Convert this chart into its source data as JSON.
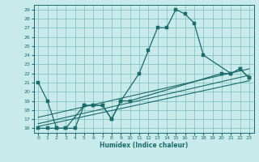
{
  "title": "",
  "xlabel": "Humidex (Indice chaleur)",
  "bg_color": "#c8eaea",
  "grid_color": "#7bbcbc",
  "line_color": "#1a6b6b",
  "xlim": [
    -0.5,
    23.5
  ],
  "ylim": [
    15.5,
    29.5
  ],
  "xticks": [
    0,
    1,
    2,
    3,
    4,
    5,
    6,
    7,
    8,
    9,
    10,
    11,
    12,
    13,
    14,
    15,
    16,
    17,
    18,
    19,
    20,
    21,
    22,
    23
  ],
  "yticks": [
    16,
    17,
    18,
    19,
    20,
    21,
    22,
    23,
    24,
    25,
    26,
    27,
    28,
    29
  ],
  "series_main": {
    "x": [
      0,
      1,
      2,
      3,
      5,
      6,
      7,
      8,
      9,
      11,
      12,
      13,
      14,
      15,
      16,
      17,
      18,
      21,
      22,
      23
    ],
    "y": [
      21,
      19,
      16,
      16,
      18.5,
      18.5,
      18.5,
      17,
      19,
      22,
      24.5,
      27,
      27,
      29,
      28.5,
      27.5,
      24,
      22,
      22.5,
      21.5
    ]
  },
  "series_lower": [
    {
      "x": [
        0,
        1,
        2,
        3,
        4,
        5,
        6,
        7,
        8,
        9,
        10,
        20,
        21,
        22,
        23
      ],
      "y": [
        16,
        16,
        16,
        16,
        16,
        18.5,
        18.5,
        18.5,
        17,
        19,
        19,
        22,
        22,
        22.5,
        21.5
      ]
    }
  ],
  "trend_lines": [
    {
      "x": [
        0,
        23
      ],
      "y": [
        16.2,
        21.2
      ]
    },
    {
      "x": [
        0,
        23
      ],
      "y": [
        16.5,
        21.8
      ]
    },
    {
      "x": [
        0,
        23
      ],
      "y": [
        17.2,
        22.5
      ]
    }
  ]
}
